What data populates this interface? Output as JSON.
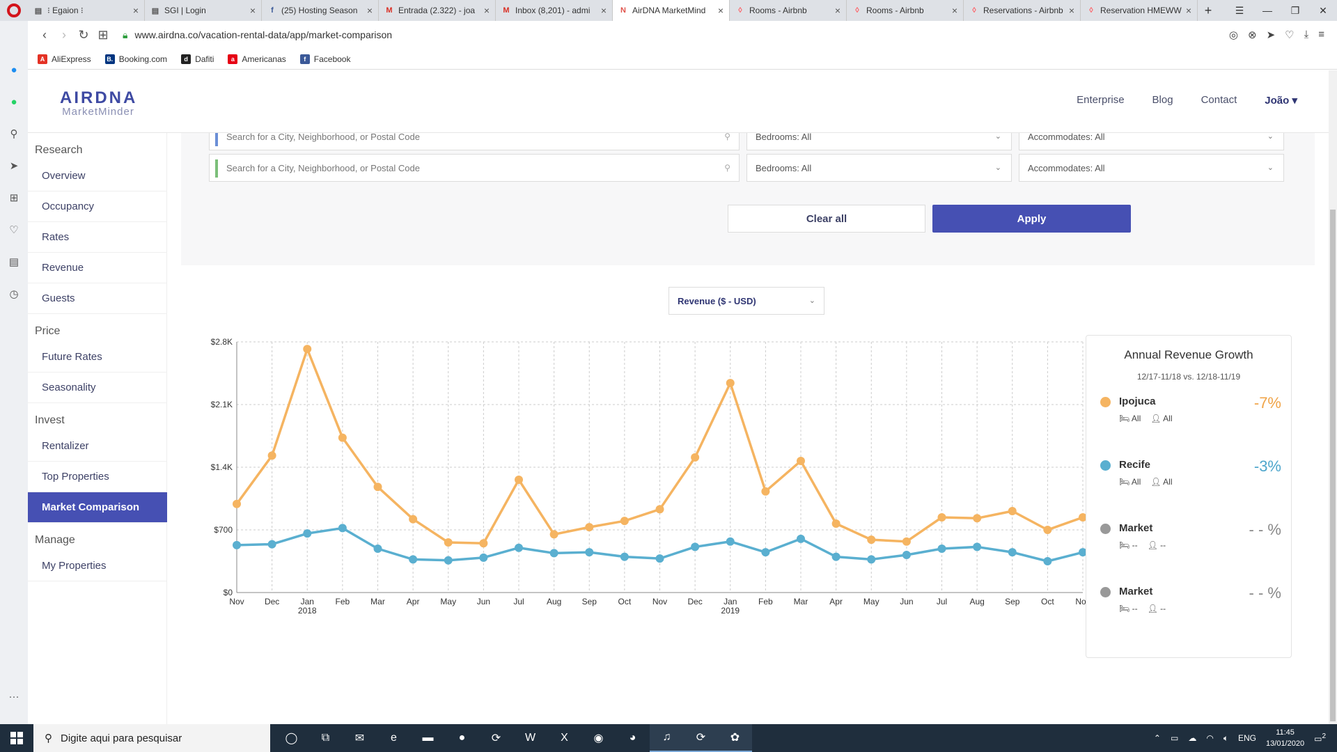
{
  "browser": {
    "tabs": [
      {
        "title": "⁝ Egaion ⁝",
        "fav": "▤",
        "fav_color": "#555"
      },
      {
        "title": "SGI | Login",
        "fav": "▤",
        "fav_color": "#555"
      },
      {
        "title": "(25) Hosting Season",
        "fav": "f",
        "fav_color": "#3b5998"
      },
      {
        "title": "Entrada (2.322) - joa",
        "fav": "M",
        "fav_color": "#d93025"
      },
      {
        "title": "Inbox (8,201) - admi",
        "fav": "M",
        "fav_color": "#d93025"
      },
      {
        "title": "AirDNA MarketMind",
        "fav": "N",
        "fav_color": "#e0524a"
      },
      {
        "title": "Rooms - Airbnb",
        "fav": "◊",
        "fav_color": "#ff5a5f"
      },
      {
        "title": "Rooms - Airbnb",
        "fav": "◊",
        "fav_color": "#ff5a5f"
      },
      {
        "title": "Reservations - Airbnb",
        "fav": "◊",
        "fav_color": "#ff5a5f"
      },
      {
        "title": "Reservation HMEWW",
        "fav": "◊",
        "fav_color": "#ff5a5f"
      }
    ],
    "active_tab": 5,
    "url": "www.airdna.co/vacation-rental-data/app/market-comparison",
    "bookmarks": [
      {
        "label": "AliExpress",
        "color": "#e43225",
        "glyph": "A"
      },
      {
        "label": "Booking.com",
        "color": "#003580",
        "glyph": "B."
      },
      {
        "label": "Dafiti",
        "color": "#222",
        "glyph": "d"
      },
      {
        "label": "Americanas",
        "color": "#e60014",
        "glyph": "a"
      },
      {
        "label": "Facebook",
        "color": "#3b5998",
        "glyph": "f"
      }
    ]
  },
  "app": {
    "logo_main": "AIRDNA",
    "logo_sub": "MarketMinder",
    "topnav": [
      "Enterprise",
      "Blog",
      "Contact"
    ],
    "user": "João ▾",
    "nav": [
      {
        "section": "Research",
        "items": [
          "Overview",
          "Occupancy",
          "Rates",
          "Revenue",
          "Guests"
        ]
      },
      {
        "section": "Price",
        "items": [
          "Future Rates",
          "Seasonality"
        ]
      },
      {
        "section": "Invest",
        "items": [
          "Rentalizer",
          "Top Properties",
          "Market Comparison"
        ]
      },
      {
        "section": "Manage",
        "items": [
          "My Properties"
        ]
      }
    ],
    "active_nav": "Market Comparison",
    "filters": {
      "search_placeholder": "Search for a City, Neighborhood, or Postal Code",
      "bedrooms": "Bedrooms: All",
      "accommodates": "Accommodates: All",
      "row_colors": [
        "#6b8fd6",
        "#7cbf7a"
      ]
    },
    "clear_label": "Clear all",
    "apply_label": "Apply",
    "metric_select": "Revenue ($ - USD)",
    "growth": {
      "title": "Annual Revenue Growth",
      "subtitle": "12/17-11/18 vs. 12/18-11/19",
      "rows": [
        {
          "name": "Ipojuca",
          "value": "-7%",
          "color": "#f5b461",
          "val_color": "#f0a448",
          "beds": "All",
          "guests": "All"
        },
        {
          "name": "Recife",
          "value": "-3%",
          "color": "#5aafd0",
          "val_color": "#4ea6cc",
          "beds": "All",
          "guests": "All"
        },
        {
          "name": "Market",
          "value": "- - %",
          "color": "#999",
          "val_color": "#888",
          "beds": "--",
          "guests": "--"
        },
        {
          "name": "Market",
          "value": "- - %",
          "color": "#999",
          "val_color": "#888",
          "beds": "--",
          "guests": "--"
        }
      ]
    }
  },
  "chart_data": {
    "type": "line",
    "x": [
      "Nov",
      "Dec",
      "Jan",
      "Feb",
      "Mar",
      "Apr",
      "May",
      "Jun",
      "Jul",
      "Aug",
      "Sep",
      "Oct",
      "Nov",
      "Dec",
      "Jan",
      "Feb",
      "Mar",
      "Apr",
      "May",
      "Jun",
      "Jul",
      "Aug",
      "Sep",
      "Oct",
      "Nov"
    ],
    "year_labels": {
      "2": "2018",
      "14": "2019"
    },
    "y_ticks": [
      "$0",
      "$700",
      "$1.4K",
      "$2.1K",
      "$2.8K"
    ],
    "ylim": [
      0,
      2800
    ],
    "series": [
      {
        "name": "Ipojuca",
        "color": "#f5b461",
        "values": [
          990,
          1530,
          2720,
          1730,
          1180,
          820,
          560,
          550,
          1260,
          650,
          730,
          800,
          930,
          1510,
          2340,
          1130,
          1470,
          770,
          590,
          570,
          840,
          830,
          910,
          700,
          840
        ]
      },
      {
        "name": "Recife",
        "color": "#5aafd0",
        "values": [
          530,
          540,
          660,
          720,
          490,
          370,
          360,
          390,
          500,
          440,
          450,
          400,
          380,
          510,
          570,
          450,
          600,
          400,
          370,
          420,
          490,
          510,
          450,
          350,
          450
        ]
      }
    ],
    "grid": true
  },
  "taskbar": {
    "search_placeholder": "Digite aqui para pesquisar",
    "apps": [
      "◯",
      "⧉",
      "✉",
      "e",
      "▬",
      "●",
      "⟳",
      "W",
      "X",
      "◉",
      "◕",
      "♫",
      "⟳",
      "✿"
    ],
    "active_apps": [
      11,
      12,
      13
    ],
    "lang": "ENG",
    "time": "11:45",
    "date": "13/01/2020",
    "notif_count": "2"
  }
}
